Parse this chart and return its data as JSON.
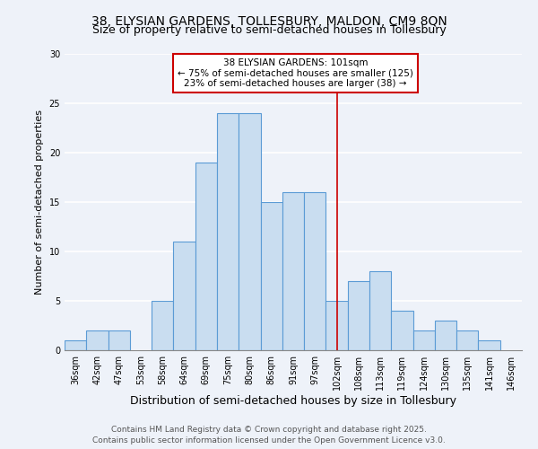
{
  "title": "38, ELYSIAN GARDENS, TOLLESBURY, MALDON, CM9 8QN",
  "subtitle": "Size of property relative to semi-detached houses in Tollesbury",
  "xlabel": "Distribution of semi-detached houses by size in Tollesbury",
  "ylabel": "Number of semi-detached properties",
  "bin_labels": [
    "36sqm",
    "42sqm",
    "47sqm",
    "53sqm",
    "58sqm",
    "64sqm",
    "69sqm",
    "75sqm",
    "80sqm",
    "86sqm",
    "91sqm",
    "97sqm",
    "102sqm",
    "108sqm",
    "113sqm",
    "119sqm",
    "124sqm",
    "130sqm",
    "135sqm",
    "141sqm",
    "146sqm"
  ],
  "bar_heights": [
    1,
    2,
    2,
    0,
    5,
    11,
    19,
    24,
    24,
    15,
    16,
    16,
    5,
    7,
    8,
    4,
    2,
    3,
    2,
    1,
    0
  ],
  "bar_color": "#c9ddf0",
  "bar_edgecolor": "#5b9bd5",
  "vline_x_index": 12,
  "vline_color": "#cc0000",
  "annotation_title": "38 ELYSIAN GARDENS: 101sqm",
  "annotation_line1": "← 75% of semi-detached houses are smaller (125)",
  "annotation_line2": "23% of semi-detached houses are larger (38) →",
  "annotation_box_edgecolor": "#cc0000",
  "annotation_box_facecolor": "#ffffff",
  "ylim": [
    0,
    30
  ],
  "yticks": [
    0,
    5,
    10,
    15,
    20,
    25,
    30
  ],
  "background_color": "#eef2f9",
  "grid_color": "#ffffff",
  "footer1": "Contains HM Land Registry data © Crown copyright and database right 2025.",
  "footer2": "Contains public sector information licensed under the Open Government Licence v3.0.",
  "title_fontsize": 10,
  "subtitle_fontsize": 9,
  "xlabel_fontsize": 9,
  "ylabel_fontsize": 8,
  "tick_fontsize": 7,
  "annotation_fontsize": 7.5,
  "footer_fontsize": 6.5
}
